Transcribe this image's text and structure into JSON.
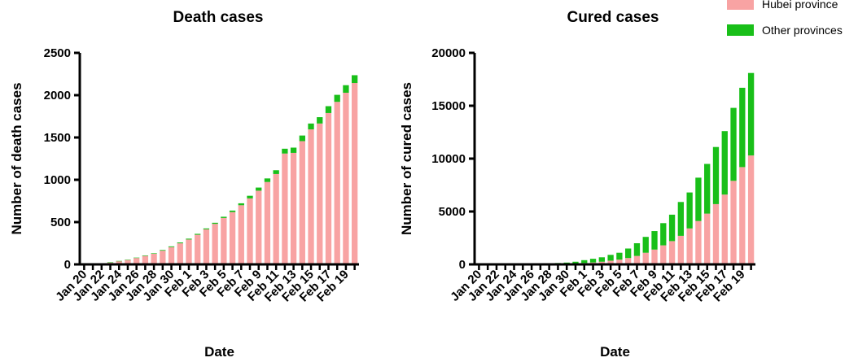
{
  "colors": {
    "hubei": "#f8a3a3",
    "other": "#19bf19",
    "axis": "#000000"
  },
  "legend": [
    {
      "name": "Hubei province",
      "color": "#f8a3a3"
    },
    {
      "name": "Other provinces",
      "color": "#19bf19"
    }
  ],
  "chart_data": [
    {
      "type": "bar",
      "stacked": true,
      "title": "Death cases",
      "xlabel": "Date",
      "ylabel": "Number of death cases",
      "ylim": [
        0,
        2500
      ],
      "yticks": [
        0,
        500,
        1000,
        1500,
        2000,
        2500
      ],
      "categories": [
        "Jan 20",
        "Jan 21",
        "Jan 22",
        "Jan 23",
        "Jan 24",
        "Jan 25",
        "Jan 26",
        "Jan 27",
        "Jan 28",
        "Jan 29",
        "Jan 30",
        "Jan 31",
        "Feb 1",
        "Feb 2",
        "Feb 3",
        "Feb 4",
        "Feb 5",
        "Feb 6",
        "Feb 7",
        "Feb 8",
        "Feb 9",
        "Feb 10",
        "Feb 11",
        "Feb 12",
        "Feb 13",
        "Feb 14",
        "Feb 15",
        "Feb 16",
        "Feb 17",
        "Feb 18",
        "Feb 19",
        "Feb 20"
      ],
      "xtick_labels": [
        "Jan 20",
        "Jan 22",
        "Jan 24",
        "Jan 26",
        "Jan 28",
        "Jan 30",
        "Feb 1",
        "Feb 3",
        "Feb 5",
        "Feb 7",
        "Feb 9",
        "Feb 11",
        "Feb 13",
        "Feb 15",
        "Feb 17",
        "Feb 19"
      ],
      "series": [
        {
          "name": "Hubei province",
          "values": [
            0,
            0,
            0,
            24,
            39,
            52,
            76,
            100,
            125,
            162,
            204,
            249,
            294,
            350,
            414,
            479,
            549,
            618,
            699,
            780,
            871,
            974,
            1068,
            1310,
            1318,
            1457,
            1596,
            1665,
            1789,
            1921,
            2029,
            2144
          ]
        },
        {
          "name": "Other provinces",
          "values": [
            0,
            0,
            0,
            1,
            2,
            4,
            4,
            6,
            6,
            8,
            9,
            10,
            10,
            11,
            11,
            13,
            14,
            18,
            23,
            31,
            37,
            42,
            45,
            57,
            62,
            66,
            69,
            75,
            81,
            83,
            89,
            92
          ]
        }
      ]
    },
    {
      "type": "bar",
      "stacked": true,
      "title": "Cured cases",
      "xlabel": "Date",
      "ylabel": "Number of cured cases",
      "ylim": [
        0,
        20000
      ],
      "yticks": [
        0,
        5000,
        10000,
        15000,
        20000
      ],
      "categories": [
        "Jan 20",
        "Jan 21",
        "Jan 22",
        "Jan 23",
        "Jan 24",
        "Jan 25",
        "Jan 26",
        "Jan 27",
        "Jan 28",
        "Jan 29",
        "Jan 30",
        "Jan 31",
        "Feb 1",
        "Feb 2",
        "Feb 3",
        "Feb 4",
        "Feb 5",
        "Feb 6",
        "Feb 7",
        "Feb 8",
        "Feb 9",
        "Feb 10",
        "Feb 11",
        "Feb 12",
        "Feb 13",
        "Feb 14",
        "Feb 15",
        "Feb 16",
        "Feb 17",
        "Feb 18",
        "Feb 19",
        "Feb 20"
      ],
      "xtick_labels": [
        "Jan 20",
        "Jan 22",
        "Jan 24",
        "Jan 26",
        "Jan 28",
        "Jan 30",
        "Feb 1",
        "Feb 3",
        "Feb 5",
        "Feb 7",
        "Feb 9",
        "Feb 11",
        "Feb 13",
        "Feb 15",
        "Feb 17",
        "Feb 19"
      ],
      "series": [
        {
          "name": "Hubei province",
          "values": [
            0,
            0,
            0,
            10,
            15,
            20,
            25,
            30,
            40,
            50,
            70,
            100,
            130,
            180,
            250,
            350,
            450,
            600,
            800,
            1100,
            1400,
            1800,
            2200,
            2700,
            3400,
            4100,
            4800,
            5700,
            6600,
            7900,
            9200,
            10300
          ]
        },
        {
          "name": "Other provinces",
          "values": [
            0,
            0,
            0,
            20,
            20,
            25,
            30,
            40,
            60,
            80,
            100,
            150,
            270,
            350,
            420,
            550,
            650,
            900,
            1200,
            1500,
            1750,
            2100,
            2500,
            3200,
            3400,
            4100,
            4700,
            5400,
            6000,
            6900,
            7500,
            7800
          ]
        }
      ]
    }
  ]
}
